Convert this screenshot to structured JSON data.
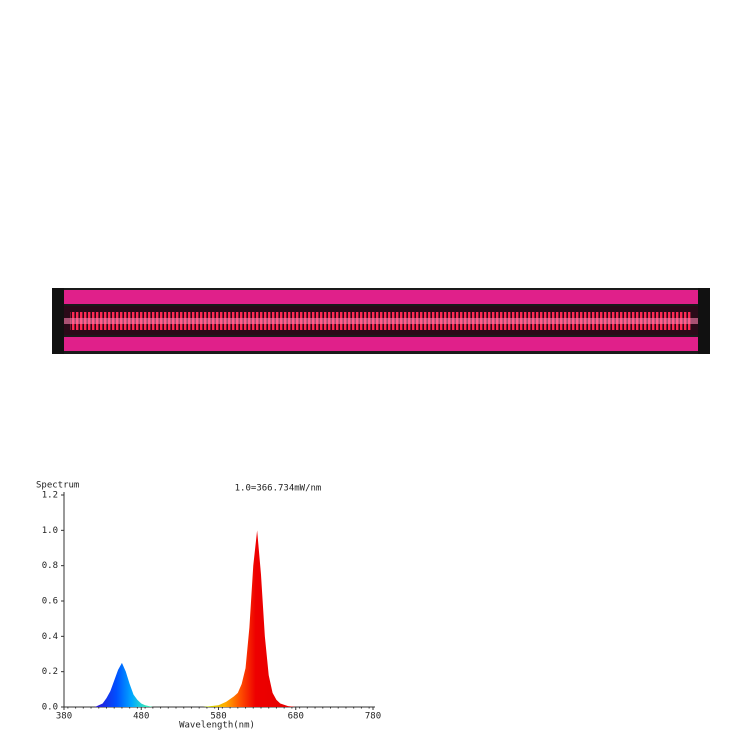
{
  "chart_data": {
    "type": "area",
    "title": "Spectrum",
    "annotation": "1.0=366.734mW/nm",
    "x_label": "Wavelength(nm)",
    "x": [
      380,
      420,
      425,
      430,
      435,
      440,
      445,
      450,
      455,
      460,
      465,
      470,
      475,
      480,
      485,
      490,
      495,
      560,
      570,
      580,
      590,
      600,
      605,
      610,
      615,
      620,
      625,
      630,
      635,
      640,
      645,
      650,
      655,
      660,
      670,
      680,
      780
    ],
    "values": [
      0,
      0,
      0.01,
      0.02,
      0.05,
      0.09,
      0.15,
      0.21,
      0.25,
      0.2,
      0.13,
      0.07,
      0.04,
      0.02,
      0.01,
      0.005,
      0,
      0,
      0.005,
      0.01,
      0.03,
      0.06,
      0.08,
      0.13,
      0.22,
      0.45,
      0.8,
      1.0,
      0.75,
      0.4,
      0.18,
      0.08,
      0.04,
      0.02,
      0.005,
      0,
      0
    ],
    "xlim": [
      380,
      780
    ],
    "xticks": [
      380,
      480,
      580,
      680,
      780
    ],
    "ylim": [
      0,
      1.2
    ],
    "yticks": [
      {
        "value": 0,
        "label": "0.0"
      },
      0.2,
      0.4,
      0.6,
      0.8,
      {
        "value": 1,
        "label": "1.0"
      },
      1.2
    ]
  }
}
